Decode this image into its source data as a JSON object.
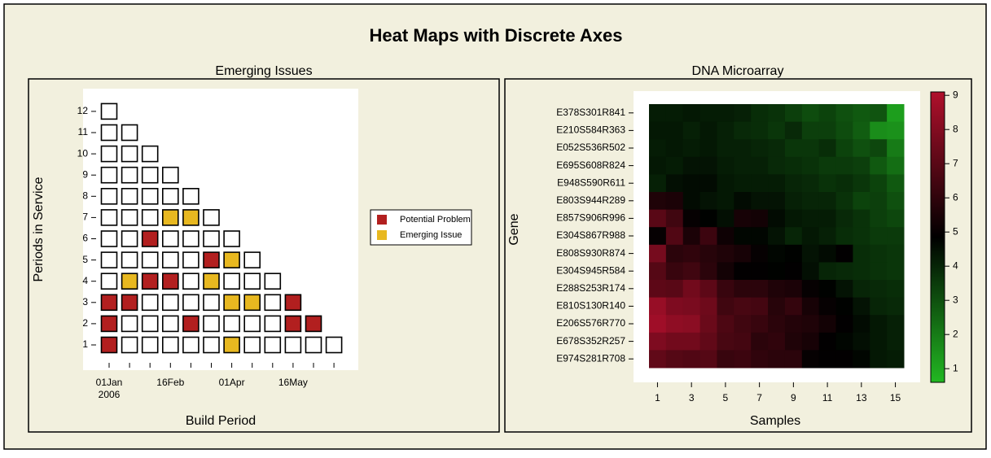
{
  "title": "Heat Maps with Discrete Axes",
  "chart_data": [
    {
      "type": "discrete_heatmap",
      "title": "Emerging Issues",
      "x_label": "Build Period",
      "y_label": "Periods in Service",
      "categories": [
        "01Jan",
        null,
        null,
        "16Feb",
        null,
        null,
        "01Apr",
        null,
        null,
        "16May",
        null,
        null
      ],
      "first_category_year": "2006",
      "y_categories": [
        1,
        2,
        3,
        4,
        5,
        6,
        7,
        8,
        9,
        10,
        11,
        12
      ],
      "series": [
        {
          "name": "Potential Problem",
          "color": "#b21f1f"
        },
        {
          "name": "Emerging Issue",
          "color": "#e8b820"
        }
      ],
      "z": [
        [
          1,
          0,
          0,
          0,
          0,
          0,
          2,
          0,
          0,
          0,
          0,
          0
        ],
        [
          1,
          0,
          0,
          0,
          1,
          0,
          0,
          0,
          0,
          1,
          1,
          null
        ],
        [
          1,
          1,
          0,
          0,
          0,
          0,
          2,
          2,
          0,
          1,
          null,
          null
        ],
        [
          0,
          2,
          1,
          1,
          0,
          2,
          0,
          0,
          0,
          null,
          null,
          null
        ],
        [
          0,
          0,
          0,
          0,
          0,
          1,
          2,
          0,
          null,
          null,
          null,
          null
        ],
        [
          0,
          0,
          1,
          0,
          0,
          0,
          0,
          null,
          null,
          null,
          null,
          null
        ],
        [
          0,
          0,
          0,
          2,
          2,
          0,
          null,
          null,
          null,
          null,
          null,
          null
        ],
        [
          0,
          0,
          0,
          0,
          0,
          null,
          null,
          null,
          null,
          null,
          null,
          null
        ],
        [
          0,
          0,
          0,
          0,
          null,
          null,
          null,
          null,
          null,
          null,
          null,
          null
        ],
        [
          0,
          0,
          0,
          null,
          null,
          null,
          null,
          null,
          null,
          null,
          null,
          null
        ],
        [
          0,
          0,
          null,
          null,
          null,
          null,
          null,
          null,
          null,
          null,
          null,
          null
        ],
        [
          0,
          null,
          null,
          null,
          null,
          null,
          null,
          null,
          null,
          null,
          null,
          null
        ]
      ]
    },
    {
      "type": "continuous_heatmap",
      "title": "DNA Microarray",
      "x_label": "Samples",
      "y_label": "Gene",
      "x": [
        1,
        2,
        3,
        4,
        5,
        6,
        7,
        8,
        9,
        10,
        11,
        12,
        13,
        14,
        15
      ],
      "xlim": [
        0.5,
        15.5
      ],
      "xticks": [
        1,
        3,
        5,
        7,
        9,
        11,
        13,
        15
      ],
      "y_categories": [
        "E378S301R841",
        "E210S584R363",
        "E052S536R502",
        "E695S608R824",
        "E948S590R611",
        "E803S944R289",
        "E857S906R996",
        "E304S867R988",
        "E808S930R874",
        "E304S945R584",
        "E288S253R174",
        "E810S130R140",
        "E206S576R770",
        "E678S352R257",
        "E974S281R708"
      ],
      "zlim": [
        0.6,
        9.1
      ],
      "zticks": [
        1,
        2,
        3,
        4,
        5,
        6,
        7,
        8,
        9
      ],
      "colors": [
        "#22b822",
        "#000000",
        "#b0102c"
      ],
      "z": [
        [
          4.2,
          4.2,
          4.3,
          4.2,
          4.2,
          4.1,
          3.8,
          3.7,
          3.4,
          3.1,
          3.3,
          3.0,
          2.8,
          2.9,
          1.2
        ],
        [
          4.3,
          4.3,
          4.1,
          4.3,
          4.1,
          3.9,
          3.8,
          3.6,
          3.9,
          3.4,
          3.4,
          3.1,
          2.7,
          1.6,
          1.5
        ],
        [
          4.2,
          4.3,
          4.2,
          4.3,
          4.1,
          4.1,
          4.0,
          3.9,
          3.6,
          3.6,
          3.8,
          3.3,
          3.0,
          3.2,
          2.0
        ],
        [
          4.3,
          4.2,
          4.4,
          4.4,
          4.2,
          4.1,
          4.1,
          3.9,
          3.8,
          3.7,
          3.5,
          3.5,
          3.4,
          2.8,
          2.3
        ],
        [
          4.1,
          4.5,
          4.6,
          4.6,
          4.3,
          4.2,
          4.2,
          4.2,
          4.0,
          3.9,
          3.7,
          3.8,
          3.6,
          3.3,
          2.8
        ],
        [
          5.6,
          5.5,
          4.6,
          4.4,
          4.3,
          4.6,
          4.4,
          4.4,
          4.1,
          4.0,
          4.0,
          3.7,
          3.3,
          3.4,
          3.0
        ],
        [
          7.0,
          6.4,
          5.0,
          4.8,
          4.5,
          5.4,
          5.3,
          4.6,
          4.3,
          4.2,
          4.2,
          3.9,
          3.7,
          3.4,
          3.2
        ],
        [
          5.0,
          6.8,
          5.5,
          6.3,
          5.2,
          4.7,
          4.7,
          4.4,
          4.0,
          4.3,
          4.1,
          3.8,
          3.7,
          3.5,
          3.5
        ],
        [
          7.7,
          5.9,
          6.0,
          5.8,
          5.6,
          5.4,
          5.0,
          4.7,
          4.8,
          4.4,
          4.6,
          4.9,
          3.8,
          3.7,
          3.6
        ],
        [
          6.9,
          6.2,
          6.4,
          5.9,
          5.3,
          4.9,
          4.9,
          4.8,
          4.9,
          4.5,
          4.0,
          3.9,
          3.8,
          3.7,
          3.6
        ],
        [
          7.1,
          7.0,
          7.6,
          7.1,
          6.2,
          5.9,
          5.9,
          5.6,
          5.5,
          5.0,
          4.8,
          4.4,
          4.0,
          3.9,
          3.8
        ],
        [
          8.5,
          7.9,
          7.8,
          7.5,
          6.4,
          6.6,
          6.5,
          5.8,
          6.1,
          5.4,
          5.0,
          4.8,
          4.4,
          4.0,
          3.9
        ],
        [
          8.7,
          8.3,
          8.2,
          7.4,
          6.7,
          6.4,
          6.2,
          5.9,
          5.7,
          5.6,
          5.3,
          4.9,
          4.6,
          4.3,
          4.1
        ],
        [
          7.9,
          7.6,
          7.6,
          7.2,
          6.6,
          6.5,
          5.9,
          6.0,
          5.6,
          5.4,
          4.9,
          4.7,
          4.5,
          4.3,
          4.1
        ],
        [
          7.2,
          6.9,
          6.8,
          6.9,
          6.2,
          6.3,
          6.0,
          5.9,
          5.9,
          5.0,
          4.9,
          4.9,
          4.7,
          4.3,
          4.2
        ]
      ]
    }
  ]
}
